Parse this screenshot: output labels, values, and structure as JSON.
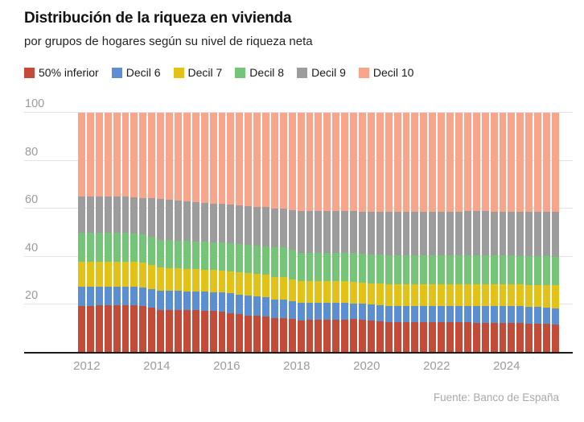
{
  "header": {
    "title": "Distribución de la riqueza en vivienda",
    "subtitle": "por grupos de hogares según su nivel de riqueza neta"
  },
  "footer": {
    "source": "Fuente: Banco de España"
  },
  "colors": {
    "red": "#c44b38",
    "blue": "#5b8fd1",
    "yellow": "#e2c216",
    "green": "#75c578",
    "gray": "#9c9c9c",
    "salmon": "#f9a58b",
    "grid": "#e3e3e3",
    "axis_text": "#9b9b9b",
    "axis_line": "#1c1c1c"
  },
  "chart_data": {
    "type": "bar",
    "stacked": true,
    "unit": "%",
    "title": "Distribución de la riqueza en vivienda",
    "subtitle": "por grupos de hogares según su nivel de riqueza neta",
    "grid": true,
    "legend_position": "top",
    "ylim": [
      0,
      100
    ],
    "y_ticks": [
      20,
      40,
      60,
      80,
      100
    ],
    "x_unit": "quarter",
    "x_tick_labels": [
      "2012",
      "2014",
      "2016",
      "2018",
      "2020",
      "2022",
      "2024"
    ],
    "x": [
      "2011Q4",
      "2012Q1",
      "2012Q2",
      "2012Q3",
      "2012Q4",
      "2013Q1",
      "2013Q2",
      "2013Q3",
      "2013Q4",
      "2014Q1",
      "2014Q2",
      "2014Q3",
      "2014Q4",
      "2015Q1",
      "2015Q2",
      "2015Q3",
      "2015Q4",
      "2016Q1",
      "2016Q2",
      "2016Q3",
      "2016Q4",
      "2017Q1",
      "2017Q2",
      "2017Q3",
      "2017Q4",
      "2018Q1",
      "2018Q2",
      "2018Q3",
      "2018Q4",
      "2019Q1",
      "2019Q2",
      "2019Q3",
      "2019Q4",
      "2020Q1",
      "2020Q2",
      "2020Q3",
      "2020Q4",
      "2021Q1",
      "2021Q2",
      "2021Q3",
      "2021Q4",
      "2022Q1",
      "2022Q2",
      "2022Q3",
      "2022Q4",
      "2023Q1",
      "2023Q2",
      "2023Q3",
      "2023Q4",
      "2024Q1",
      "2024Q2",
      "2024Q3",
      "2024Q4",
      "2025Q1",
      "2025Q2"
    ],
    "series": [
      {
        "name": "50% inferior",
        "color": "#c44b38",
        "values": [
          19.6,
          19.6,
          19.7,
          19.8,
          19.8,
          19.9,
          19.9,
          19.5,
          18.7,
          17.9,
          17.9,
          17.8,
          17.8,
          17.7,
          17.6,
          17.4,
          17.0,
          16.5,
          16.0,
          15.5,
          15.4,
          15.2,
          14.3,
          14.4,
          14.0,
          13.5,
          13.6,
          13.7,
          13.7,
          13.8,
          13.9,
          14.0,
          13.7,
          13.4,
          13.2,
          12.9,
          12.9,
          12.9,
          12.9,
          12.8,
          12.8,
          12.8,
          12.7,
          12.7,
          12.6,
          12.5,
          12.5,
          12.4,
          12.4,
          12.4,
          12.3,
          12.2,
          12.1,
          12.0,
          11.8
        ]
      },
      {
        "name": "Decil 6",
        "color": "#5b8fd1",
        "values": [
          7.9,
          7.9,
          7.8,
          7.8,
          7.8,
          7.7,
          7.7,
          7.7,
          7.8,
          7.9,
          7.8,
          7.9,
          7.8,
          7.8,
          7.8,
          7.9,
          8.0,
          8.2,
          8.2,
          8.2,
          8.1,
          8.0,
          7.9,
          7.6,
          7.4,
          7.2,
          7.1,
          7.0,
          7.0,
          6.9,
          6.8,
          6.6,
          6.6,
          6.6,
          6.5,
          6.5,
          6.5,
          6.5,
          6.5,
          6.6,
          6.6,
          6.6,
          6.7,
          6.7,
          6.8,
          6.9,
          6.9,
          7.0,
          7.0,
          7.0,
          7.0,
          6.9,
          6.9,
          6.8,
          6.7
        ]
      },
      {
        "name": "Decil 7",
        "color": "#e2c216",
        "values": [
          10.3,
          10.4,
          10.4,
          10.3,
          10.3,
          10.3,
          10.2,
          10.3,
          10.0,
          9.6,
          9.6,
          9.4,
          9.4,
          9.3,
          9.2,
          9.1,
          9.2,
          9.3,
          9.4,
          9.4,
          9.3,
          9.3,
          9.4,
          9.4,
          9.2,
          9.0,
          9.0,
          9.0,
          9.0,
          9.0,
          9.0,
          9.0,
          9.0,
          9.0,
          9.1,
          9.2,
          9.2,
          9.2,
          9.2,
          9.1,
          9.1,
          9.1,
          9.1,
          9.0,
          9.0,
          9.0,
          9.0,
          9.0,
          9.0,
          9.0,
          9.1,
          9.2,
          9.3,
          9.4,
          9.6
        ]
      },
      {
        "name": "Decil 8",
        "color": "#75c578",
        "values": [
          12.1,
          12.1,
          12.1,
          12.1,
          12.0,
          12.0,
          12.0,
          11.9,
          11.8,
          11.7,
          11.6,
          11.7,
          11.6,
          11.6,
          11.6,
          11.6,
          11.7,
          11.8,
          11.8,
          11.8,
          11.9,
          11.9,
          12.4,
          12.4,
          12.2,
          12.0,
          12.0,
          12.0,
          12.0,
          12.0,
          12.0,
          12.0,
          12.0,
          12.0,
          12.1,
          12.1,
          12.1,
          12.1,
          12.1,
          12.2,
          12.2,
          12.2,
          12.2,
          12.3,
          12.3,
          12.3,
          12.3,
          12.2,
          12.2,
          12.1,
          12.0,
          12.0,
          11.9,
          11.9,
          11.8
        ]
      },
      {
        "name": "Decil 9",
        "color": "#9c9c9c",
        "values": [
          15.1,
          15.0,
          15.0,
          15.0,
          15.1,
          15.1,
          15.1,
          15.1,
          16.0,
          16.9,
          16.8,
          16.5,
          16.4,
          16.2,
          16.1,
          16.0,
          16.1,
          16.1,
          16.1,
          16.2,
          16.2,
          16.2,
          16.2,
          16.2,
          16.7,
          17.2,
          17.2,
          17.2,
          17.2,
          17.2,
          17.2,
          17.3,
          17.5,
          17.7,
          17.8,
          17.9,
          17.9,
          17.9,
          18.0,
          18.0,
          18.0,
          18.0,
          18.1,
          18.1,
          18.2,
          18.2,
          18.2,
          18.2,
          18.2,
          18.2,
          18.3,
          18.4,
          18.4,
          18.5,
          18.7
        ]
      },
      {
        "name": "Decil 10",
        "color": "#f9a58b",
        "values": [
          35.0,
          35.0,
          35.0,
          35.0,
          35.0,
          35.0,
          35.1,
          35.5,
          35.7,
          36.0,
          36.3,
          36.7,
          37.0,
          37.4,
          37.7,
          38.0,
          38.0,
          38.1,
          38.5,
          38.9,
          39.1,
          39.4,
          39.8,
          40.0,
          40.5,
          41.1,
          41.1,
          41.1,
          41.1,
          41.1,
          41.1,
          41.1,
          41.2,
          41.3,
          41.3,
          41.4,
          41.4,
          41.4,
          41.3,
          41.3,
          41.3,
          41.3,
          41.2,
          41.2,
          41.1,
          41.1,
          41.1,
          41.2,
          41.2,
          41.3,
          41.3,
          41.3,
          41.4,
          41.4,
          41.4
        ]
      }
    ]
  }
}
